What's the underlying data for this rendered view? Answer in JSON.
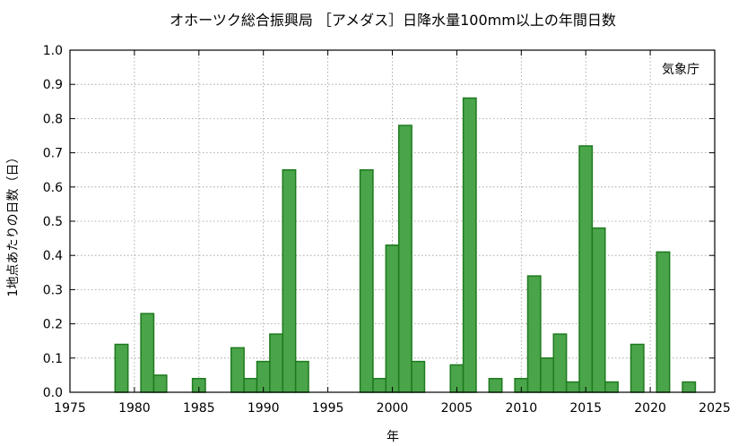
{
  "chart_data": {
    "type": "bar",
    "title": "オホーツク総合振興局 ［アメダス］日降水量100mm以上の年間日数",
    "xlabel": "年",
    "ylabel": "1地点あたりの日数（日）",
    "annotation": "気象庁",
    "xlim": [
      1975,
      2025
    ],
    "ylim": [
      0,
      1.0
    ],
    "xticks": [
      1975,
      1980,
      1985,
      1990,
      1995,
      2000,
      2005,
      2010,
      2015,
      2020,
      2025
    ],
    "yticks": [
      0.0,
      0.1,
      0.2,
      0.3,
      0.4,
      0.5,
      0.6,
      0.7,
      0.8,
      0.9,
      1.0
    ],
    "xtick_labels": [
      "1975",
      "1980",
      "1985",
      "1990",
      "1995",
      "2000",
      "2005",
      "2010",
      "2015",
      "2020",
      "2025"
    ],
    "ytick_labels": [
      "0.0",
      "0.1",
      "0.2",
      "0.3",
      "0.4",
      "0.5",
      "0.6",
      "0.7",
      "0.8",
      "0.9",
      "1.0"
    ],
    "grid": true,
    "bar_color": "#4aa44a",
    "bar_edge_color": "#1e7a1e",
    "data": [
      {
        "year": 1979,
        "value": 0.14
      },
      {
        "year": 1981,
        "value": 0.23
      },
      {
        "year": 1982,
        "value": 0.05
      },
      {
        "year": 1985,
        "value": 0.04
      },
      {
        "year": 1988,
        "value": 0.13
      },
      {
        "year": 1989,
        "value": 0.04
      },
      {
        "year": 1990,
        "value": 0.09
      },
      {
        "year": 1991,
        "value": 0.17
      },
      {
        "year": 1992,
        "value": 0.65
      },
      {
        "year": 1993,
        "value": 0.09
      },
      {
        "year": 1998,
        "value": 0.65
      },
      {
        "year": 1999,
        "value": 0.04
      },
      {
        "year": 2000,
        "value": 0.43
      },
      {
        "year": 2001,
        "value": 0.78
      },
      {
        "year": 2002,
        "value": 0.09
      },
      {
        "year": 2005,
        "value": 0.08
      },
      {
        "year": 2006,
        "value": 0.86
      },
      {
        "year": 2008,
        "value": 0.04
      },
      {
        "year": 2010,
        "value": 0.04
      },
      {
        "year": 2011,
        "value": 0.34
      },
      {
        "year": 2012,
        "value": 0.1
      },
      {
        "year": 2013,
        "value": 0.17
      },
      {
        "year": 2014,
        "value": 0.03
      },
      {
        "year": 2015,
        "value": 0.72
      },
      {
        "year": 2016,
        "value": 0.48
      },
      {
        "year": 2017,
        "value": 0.03
      },
      {
        "year": 2019,
        "value": 0.14
      },
      {
        "year": 2021,
        "value": 0.41
      },
      {
        "year": 2023,
        "value": 0.03
      }
    ]
  }
}
